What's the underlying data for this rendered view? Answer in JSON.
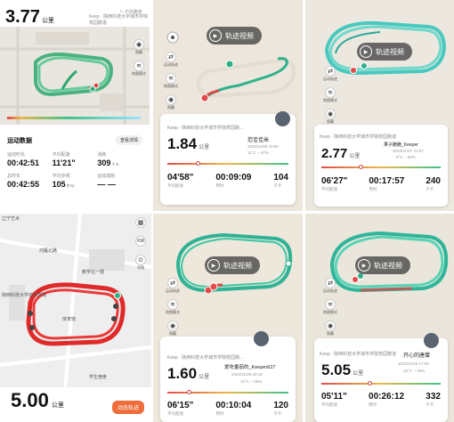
{
  "panel1": {
    "distance": "3.77",
    "unit": "公里",
    "tag": "Keep · 陕西科技大学城市学院校园跑道",
    "mode": "户外跑步",
    "sheet_title": "运动数据",
    "sheet_link": "查看详情",
    "stats": [
      {
        "label": "运动时长",
        "value": "00:42:51",
        "unit": ""
      },
      {
        "label": "平均配速",
        "value": "11'21\"",
        "unit": ""
      },
      {
        "label": "消耗",
        "value": "309",
        "unit": "千卡"
      },
      {
        "label": "总时长",
        "value": "00:42:55",
        "unit": ""
      },
      {
        "label": "平均步频",
        "value": "105",
        "unit": "步/分"
      },
      {
        "label": "运动成就",
        "value": "— —",
        "unit": ""
      }
    ],
    "tools": [
      {
        "icon": "eye-icon",
        "glyph": "◉",
        "label": "隐藏"
      },
      {
        "icon": "layers-icon",
        "glyph": "≋",
        "label": "地图模式"
      }
    ]
  },
  "panel2": {
    "video_label": "轨迹视频",
    "tag": "Keep · 陕西科技大学城市学院校园跑...",
    "distance": "1.84",
    "unit": "公里",
    "user": "范佳佳米",
    "date": "2023/11/08 19:55",
    "weather": "11°C  ◔ 67%",
    "stats": [
      {
        "value": "04'58\"",
        "label": "平均配速"
      },
      {
        "value": "00:09:09",
        "label": "用时"
      },
      {
        "value": "104",
        "label": "千卡"
      }
    ],
    "tools": [
      {
        "icon": "swap-icon",
        "glyph": "⇄",
        "label": "运动轨迹"
      },
      {
        "icon": "layers-icon",
        "glyph": "≋",
        "label": "地图模式"
      },
      {
        "icon": "eye-icon",
        "glyph": "◉",
        "label": "隐藏"
      }
    ]
  },
  "panel3": {
    "video_label": "轨迹视频",
    "tag": "Keep · 陕西科技大学城市学院校园跑道",
    "distance": "2.77",
    "unit": "公里",
    "user": "果子脆脆_Keeper",
    "date": "2023/11/07 21:57",
    "weather": "9°C  ◔ 66%",
    "stats": [
      {
        "value": "06'27\"",
        "label": "平均配速"
      },
      {
        "value": "00:17:57",
        "label": "用时"
      },
      {
        "value": "240",
        "label": "千卡"
      }
    ],
    "tools": [
      {
        "icon": "swap-icon",
        "glyph": "⇄",
        "label": "运动轨迹"
      },
      {
        "icon": "layers-icon",
        "glyph": "≋",
        "label": "地图模式"
      },
      {
        "icon": "eye-icon",
        "glyph": "◉",
        "label": "隐藏"
      }
    ]
  },
  "panel4": {
    "distance": "5.00",
    "unit": "公里",
    "button": "动态轨迹",
    "labels": [
      "辽宁艺术",
      "鸿雁北路",
      "教学北一楼",
      "陕西科技大学城市学院",
      "体育馆",
      "学生宿舍"
    ],
    "tools": [
      {
        "icon": "map-icon",
        "glyph": "▦",
        "label": ""
      },
      {
        "icon": "km-icon",
        "glyph": "KM",
        "label": ""
      },
      {
        "icon": "location-icon",
        "glyph": "⊙",
        "label": "学路"
      }
    ]
  },
  "panel5": {
    "video_label": "轨迹视频",
    "tag": "Keep · 陕西科技大学城市学院校园跑...",
    "distance": "1.60",
    "unit": "公里",
    "user": "爱吃番茄的_Keeper627",
    "date": "2023/11/08 20:18",
    "weather": "10°C  ◔ 66%",
    "stats": [
      {
        "value": "06'15\"",
        "label": "平均配速"
      },
      {
        "value": "00:10:04",
        "label": "用时"
      },
      {
        "value": "120",
        "label": "千卡"
      }
    ],
    "tools": [
      {
        "icon": "swap-icon",
        "glyph": "⇄",
        "label": "运动轨迹"
      },
      {
        "icon": "layers-icon",
        "glyph": "≋",
        "label": "地图模式"
      },
      {
        "icon": "eye-icon",
        "glyph": "◉",
        "label": "隐藏"
      }
    ]
  },
  "panel6": {
    "video_label": "轨迹视频",
    "tag": "Keep · 陕西科技大学城市学院校园跑道",
    "distance": "5.05",
    "unit": "公里",
    "user": "开心的唐僧",
    "date": "2023/11/06 17:09",
    "weather": "16°C  ◔ 40%",
    "stats": [
      {
        "value": "05'11\"",
        "label": "平均配速"
      },
      {
        "value": "00:26:12",
        "label": "用时"
      },
      {
        "value": "332",
        "label": "千卡"
      }
    ],
    "tools": [
      {
        "icon": "swap-icon",
        "glyph": "⇄",
        "label": "运动轨迹"
      },
      {
        "icon": "layers-icon",
        "glyph": "≋",
        "label": "地图模式"
      },
      {
        "icon": "eye-icon",
        "glyph": "◉",
        "label": "隐藏"
      }
    ]
  }
}
